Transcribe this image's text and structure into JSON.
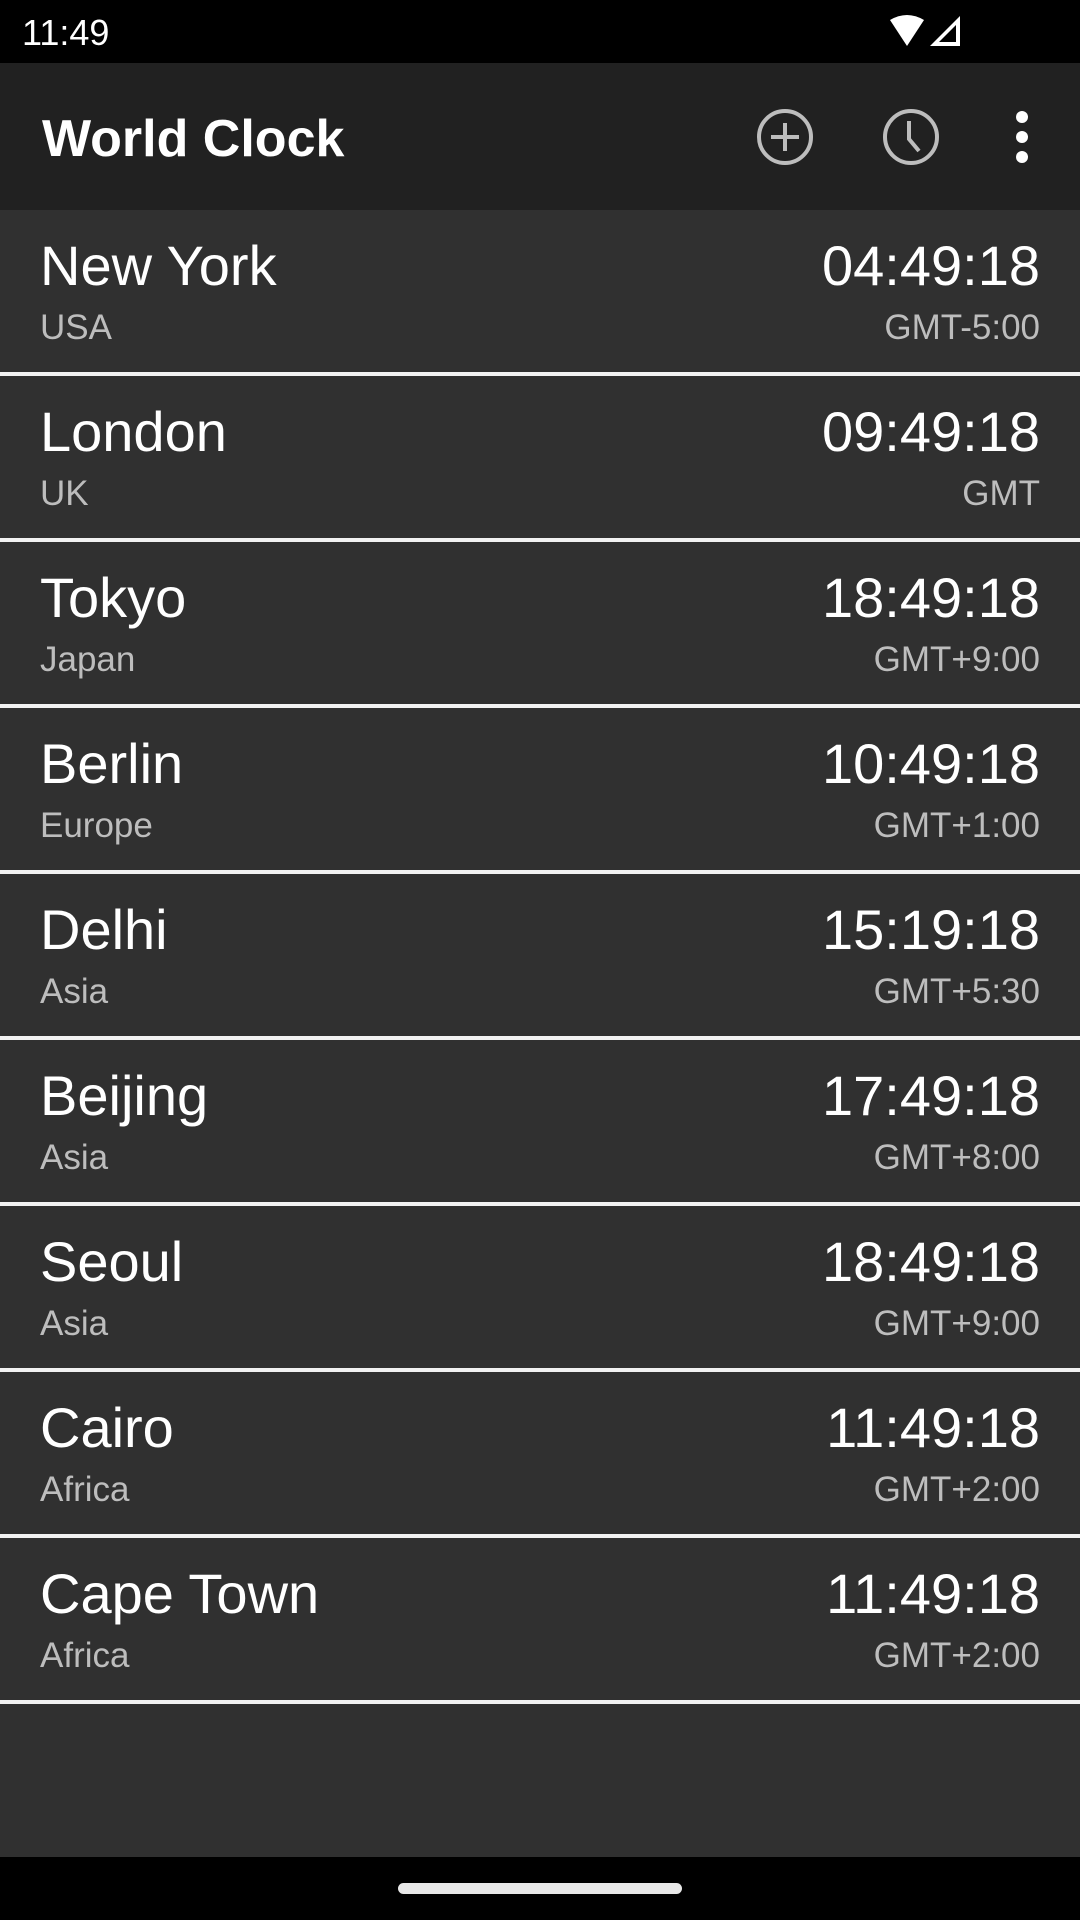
{
  "status_bar": {
    "time": "11:49",
    "icons": [
      "wifi-icon",
      "cell-signal-icon"
    ]
  },
  "toolbar": {
    "title": "World Clock",
    "actions": [
      {
        "name": "add-city-button",
        "icon": "add-circle-icon"
      },
      {
        "name": "clock-button",
        "icon": "clock-icon"
      },
      {
        "name": "more-options-button",
        "icon": "more-vert-icon"
      }
    ]
  },
  "clocks": [
    {
      "city": "New York",
      "region": "USA",
      "time": "04:49:18",
      "offset": "GMT-5:00"
    },
    {
      "city": "London",
      "region": "UK",
      "time": "09:49:18",
      "offset": "GMT"
    },
    {
      "city": "Tokyo",
      "region": "Japan",
      "time": "18:49:18",
      "offset": "GMT+9:00"
    },
    {
      "city": "Berlin",
      "region": "Europe",
      "time": "10:49:18",
      "offset": "GMT+1:00"
    },
    {
      "city": "Delhi",
      "region": "Asia",
      "time": "15:19:18",
      "offset": "GMT+5:30"
    },
    {
      "city": "Beijing",
      "region": "Asia",
      "time": "17:49:18",
      "offset": "GMT+8:00"
    },
    {
      "city": "Seoul",
      "region": "Asia",
      "time": "18:49:18",
      "offset": "GMT+9:00"
    },
    {
      "city": "Cairo",
      "region": "Africa",
      "time": "11:49:18",
      "offset": "GMT+2:00"
    },
    {
      "city": "Cape Town",
      "region": "Africa",
      "time": "11:49:18",
      "offset": "GMT+2:00"
    }
  ],
  "colors": {
    "toolbar": "#212121",
    "background": "#303030",
    "divider": "#f2f2f2",
    "secondary_text": "#bdbdbd"
  }
}
